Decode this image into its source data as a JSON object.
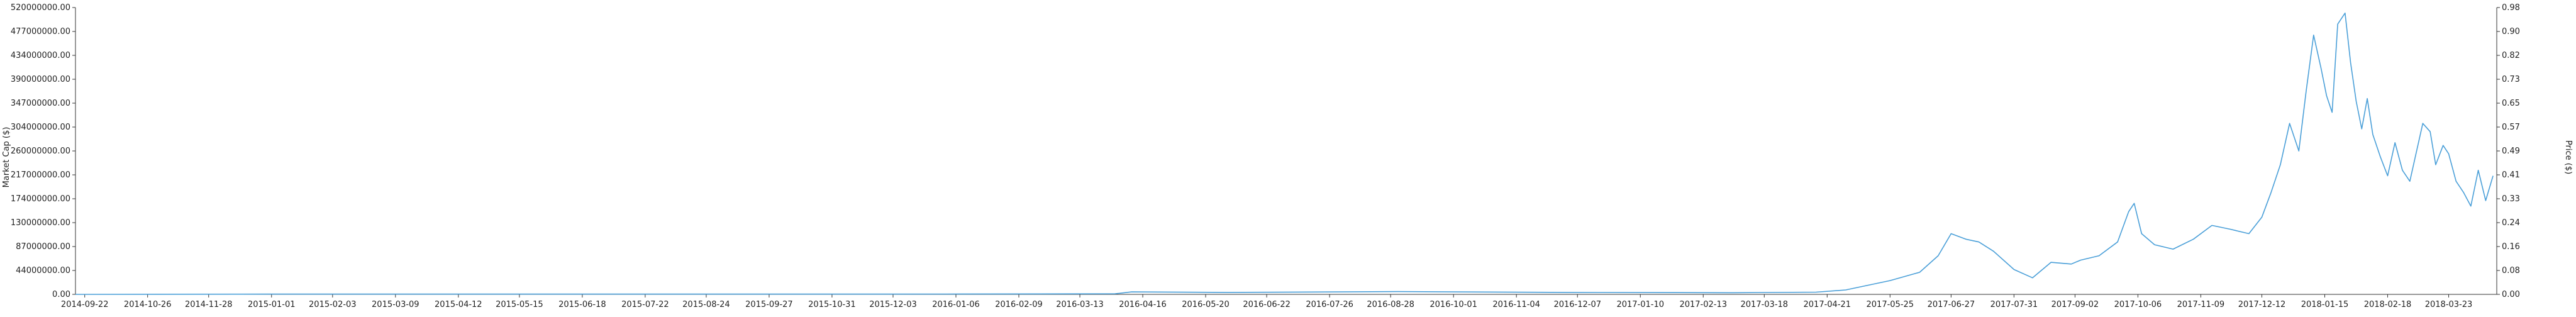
{
  "chart_data": {
    "type": "line",
    "ylabel": "Market Cap ($)",
    "y2label": "Price ($)",
    "ylim": [
      0,
      520000000
    ],
    "y2lim": [
      0,
      0.98
    ],
    "grid": false,
    "legend": "none",
    "y_ticks": [
      "0.00",
      "44000000.00",
      "87000000.00",
      "130000000.00",
      "174000000.00",
      "217000000.00",
      "260000000.00",
      "304000000.00",
      "347000000.00",
      "390000000.00",
      "434000000.00",
      "477000000.00",
      "520000000.00"
    ],
    "y2_ticks": [
      "0.00",
      "0.08",
      "0.16",
      "0.24",
      "0.33",
      "0.41",
      "0.49",
      "0.57",
      "0.65",
      "0.73",
      "0.82",
      "0.90",
      "0.98"
    ],
    "x_ticks": [
      "2014-09-22",
      "2014-10-26",
      "2014-11-28",
      "2015-01-01",
      "2015-02-03",
      "2015-03-09",
      "2015-04-12",
      "2015-05-15",
      "2015-06-18",
      "2015-07-22",
      "2015-08-24",
      "2015-09-27",
      "2015-10-31",
      "2015-12-03",
      "2016-01-06",
      "2016-02-09",
      "2016-03-13",
      "2016-04-16",
      "2016-05-20",
      "2016-06-22",
      "2016-07-26",
      "2016-08-28",
      "2016-10-01",
      "2016-11-04",
      "2016-12-07",
      "2017-01-10",
      "2017-02-13",
      "2017-03-18",
      "2017-04-21",
      "2017-05-25",
      "2017-06-27",
      "2017-07-31",
      "2017-09-02",
      "2017-10-06",
      "2017-11-09",
      "2017-12-12",
      "2018-01-15",
      "2018-02-18",
      "2018-03-23"
    ],
    "x_range": [
      "2014-09-17",
      "2018-04-18"
    ],
    "series": [
      {
        "color": "#4a9fd8",
        "x": [
          "2014-09-17",
          "2015-01-01",
          "2015-06-01",
          "2016-01-01",
          "2016-04-01",
          "2016-04-10",
          "2016-06-01",
          "2016-09-01",
          "2016-12-01",
          "2017-03-01",
          "2017-04-15",
          "2017-05-01",
          "2017-05-25",
          "2017-06-10",
          "2017-06-20",
          "2017-06-27",
          "2017-07-05",
          "2017-07-12",
          "2017-07-20",
          "2017-07-31",
          "2017-08-10",
          "2017-08-20",
          "2017-08-31",
          "2017-09-05",
          "2017-09-15",
          "2017-09-25",
          "2017-10-01",
          "2017-10-04",
          "2017-10-08",
          "2017-10-15",
          "2017-10-25",
          "2017-11-05",
          "2017-11-15",
          "2017-11-25",
          "2017-12-05",
          "2017-12-12",
          "2017-12-17",
          "2017-12-22",
          "2017-12-27",
          "2018-01-01",
          "2018-01-05",
          "2018-01-09",
          "2018-01-13",
          "2018-01-16",
          "2018-01-19",
          "2018-01-22",
          "2018-01-26",
          "2018-01-29",
          "2018-02-01",
          "2018-02-04",
          "2018-02-07",
          "2018-02-10",
          "2018-02-14",
          "2018-02-18",
          "2018-02-22",
          "2018-02-26",
          "2018-03-02",
          "2018-03-05",
          "2018-03-09",
          "2018-03-13",
          "2018-03-16",
          "2018-03-20",
          "2018-03-23",
          "2018-03-27",
          "2018-03-31",
          "2018-04-04",
          "2018-04-08",
          "2018-04-12",
          "2018-04-16"
        ],
        "y": [
          0,
          500000,
          500000,
          600000,
          1000000,
          4500000,
          3500000,
          5000000,
          3500000,
          3000000,
          4000000,
          8000000,
          25000000,
          40000000,
          70000000,
          110000000,
          100000000,
          95000000,
          78000000,
          45000000,
          30000000,
          58000000,
          55000000,
          62000000,
          70000000,
          95000000,
          150000000,
          165000000,
          110000000,
          90000000,
          82000000,
          100000000,
          125000000,
          118000000,
          110000000,
          140000000,
          185000000,
          235000000,
          310000000,
          260000000,
          370000000,
          470000000,
          410000000,
          360000000,
          330000000,
          490000000,
          510000000,
          420000000,
          350000000,
          300000000,
          355000000,
          290000000,
          250000000,
          215000000,
          275000000,
          225000000,
          205000000,
          250000000,
          310000000,
          295000000,
          235000000,
          270000000,
          255000000,
          205000000,
          185000000,
          160000000,
          225000000,
          170000000,
          215000000
        ]
      }
    ]
  }
}
